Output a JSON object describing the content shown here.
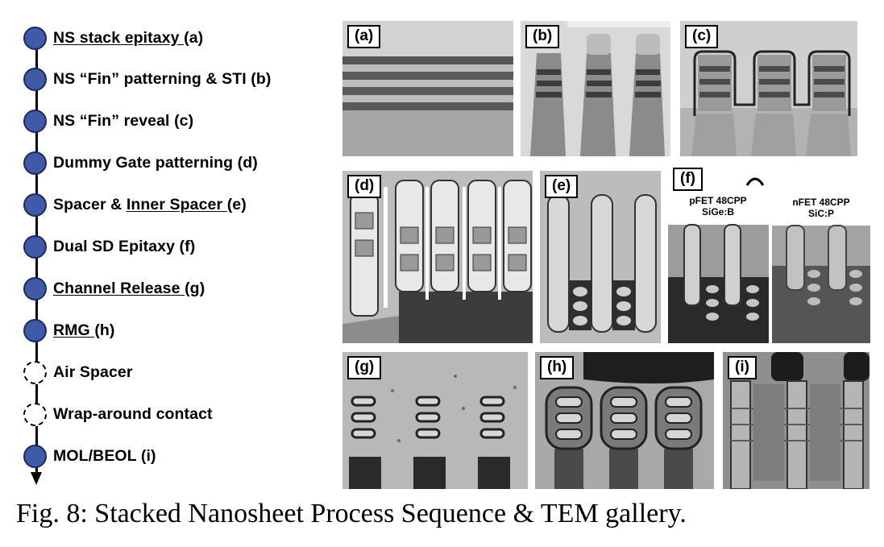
{
  "steps": [
    {
      "pre": "",
      "ul": "NS stack epitaxy ",
      "post": "(a)",
      "pending": false
    },
    {
      "pre": "NS “Fin” patterning & STI (b)",
      "ul": "",
      "post": "",
      "pending": false
    },
    {
      "pre": "NS “Fin” reveal (c)",
      "ul": "",
      "post": "",
      "pending": false
    },
    {
      "pre": "Dummy Gate patterning (d)",
      "ul": "",
      "post": "",
      "pending": false
    },
    {
      "pre": "Spacer & ",
      "ul": "Inner Spacer ",
      "post": "(e)",
      "pending": false
    },
    {
      "pre": "Dual SD Epitaxy (f)",
      "ul": "",
      "post": "",
      "pending": false
    },
    {
      "pre": "",
      "ul": "Channel Release ",
      "post": "(g)",
      "pending": false
    },
    {
      "pre": "",
      "ul": "RMG ",
      "post": "(h)",
      "pending": false
    },
    {
      "pre": "Air Spacer",
      "ul": "",
      "post": "",
      "pending": true
    },
    {
      "pre": "Wrap-around contact",
      "ul": "",
      "post": "",
      "pending": true
    },
    {
      "pre": "MOL/BEOL (i)",
      "ul": "",
      "post": "",
      "pending": false
    }
  ],
  "panels": {
    "a": "(a)",
    "b": "(b)",
    "c": "(c)",
    "d": "(d)",
    "e": "(e)",
    "f": "(f)",
    "g": "(g)",
    "h": "(h)",
    "i": "(i)"
  },
  "panel_f": {
    "left_line1": "pFET 48CPP",
    "left_line2": "SiGe:B",
    "right_line1": "nFET 48CPP",
    "right_line2": "SiC:P"
  },
  "caption": "Fig. 8: Stacked Nanosheet Process Sequence & TEM gallery.",
  "colors": {
    "dot_fill": "#3f5aa6",
    "dot_border": "#1c2a66"
  }
}
